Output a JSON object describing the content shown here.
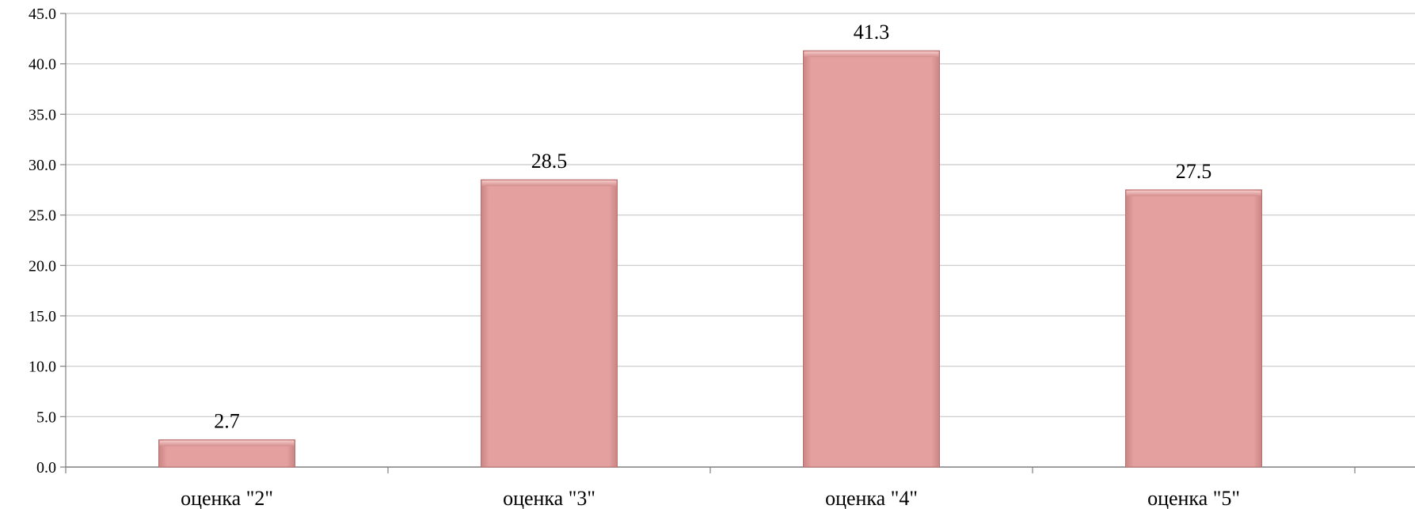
{
  "chart_data": {
    "type": "bar",
    "categories": [
      "оценка \"2\"",
      "оценка \"3\"",
      "оценка \"4\"",
      "оценка \"5\""
    ],
    "values": [
      2.7,
      28.5,
      41.3,
      27.5
    ],
    "data_labels": [
      "2.7",
      "28.5",
      "41.3",
      "27.5"
    ],
    "ylim": [
      0,
      45
    ],
    "y_ticks": [
      "0.0",
      "5.0",
      "10.0",
      "15.0",
      "20.0",
      "25.0",
      "30.0",
      "35.0",
      "40.0",
      "45.0"
    ],
    "grid": true,
    "legend": "none",
    "bar_color": "#e5a09f",
    "bar_edge_color": "#b86e6d"
  }
}
